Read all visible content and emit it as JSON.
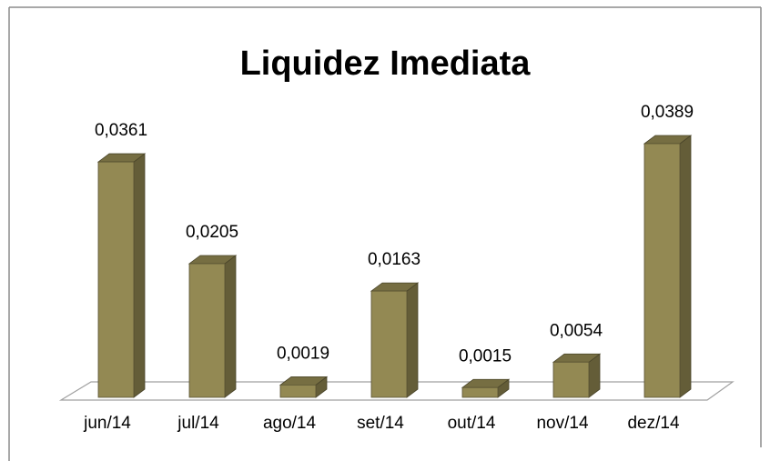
{
  "chart_data": {
    "type": "bar3d",
    "title": "Liquidez Imediata",
    "categories": [
      "jun/14",
      "jul/14",
      "ago/14",
      "set/14",
      "out/14",
      "nov/14",
      "dez/14"
    ],
    "values": [
      0.0361,
      0.0205,
      0.0019,
      0.0163,
      0.0015,
      0.0054,
      0.0389
    ],
    "value_labels": [
      "0,0361",
      "0,0205",
      "0,0019",
      "0,0163",
      "0,0015",
      "0,0054",
      "0,0389"
    ],
    "color": "#938953"
  }
}
